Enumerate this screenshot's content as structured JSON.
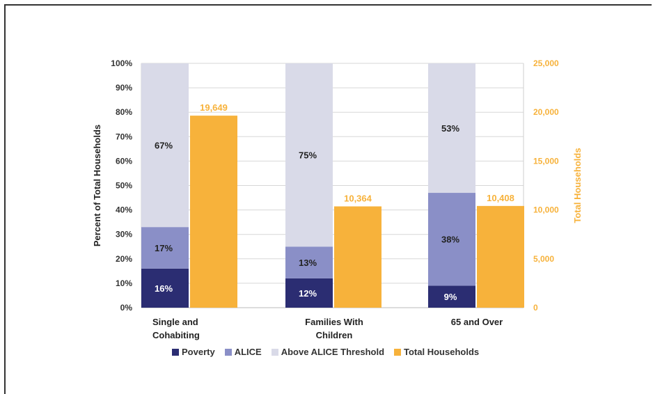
{
  "chart_data": {
    "type": "bar",
    "categories": [
      "Single and Cohabiting",
      "Families With Children",
      "65 and Over"
    ],
    "category_lines": [
      [
        "Single and",
        "Cohabiting"
      ],
      [
        "Families With",
        "Children"
      ],
      [
        "65 and Over"
      ]
    ],
    "stacked_series": [
      {
        "name": "Poverty",
        "values": [
          16,
          12,
          9
        ],
        "labels": [
          "16%",
          "12%",
          "9%"
        ],
        "color": "#2b2d72",
        "label_color": "#ffffff"
      },
      {
        "name": "ALICE",
        "values": [
          17,
          13,
          38
        ],
        "labels": [
          "17%",
          "13%",
          "38%"
        ],
        "color": "#8a8fc7",
        "label_color": "#222222"
      },
      {
        "name": "Above ALICE Threshold",
        "values": [
          67,
          75,
          53
        ],
        "labels": [
          "67%",
          "75%",
          "53%"
        ],
        "color": "#d9dae8",
        "label_color": "#222222"
      }
    ],
    "secondary_series": {
      "name": "Total Households",
      "values": [
        19649,
        10364,
        10408
      ],
      "labels": [
        "19,649",
        "10,364",
        "10,408"
      ],
      "color": "#f7b23b"
    },
    "ylabel": "Percent of Total Households",
    "y2label": "Total Households",
    "ylim": [
      0,
      100
    ],
    "y2lim": [
      0,
      25000
    ],
    "y_ticks": [
      "0%",
      "10%",
      "20%",
      "30%",
      "40%",
      "50%",
      "60%",
      "70%",
      "80%",
      "90%",
      "100%"
    ],
    "y2_ticks": [
      "0",
      "5,000",
      "10,000",
      "15,000",
      "20,000",
      "25,000"
    ],
    "grid": true,
    "legend_position": "bottom"
  },
  "legend": {
    "poverty": "Poverty",
    "alice": "ALICE",
    "above": "Above ALICE Threshold",
    "total": "Total Households"
  },
  "colors": {
    "poverty": "#2b2d72",
    "alice": "#8a8fc7",
    "above": "#d9dae8",
    "total": "#f7b23b",
    "axis_right": "#f7b23b"
  }
}
